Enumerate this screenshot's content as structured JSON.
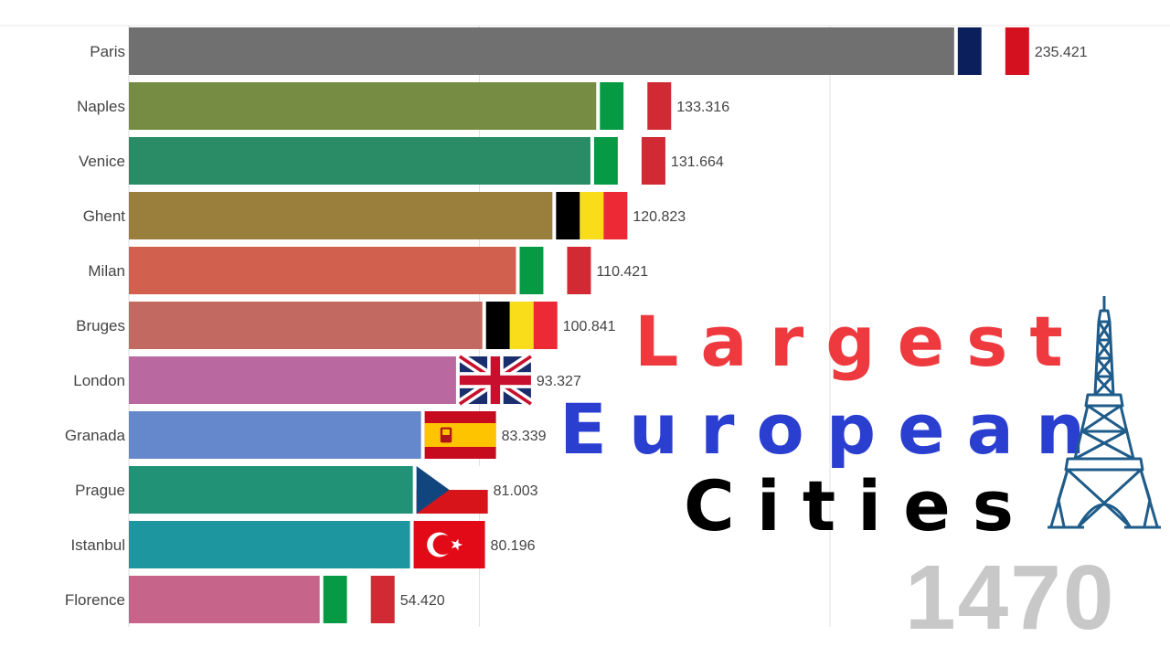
{
  "chart_data": {
    "type": "bar",
    "orientation": "horizontal",
    "categories": [
      "Paris",
      "Naples",
      "Venice",
      "Ghent",
      "Milan",
      "Bruges",
      "London",
      "Granada",
      "Prague",
      "Istanbul",
      "Florence"
    ],
    "values": [
      235.421,
      133.316,
      131.664,
      120.823,
      110.421,
      100.841,
      93.327,
      83.339,
      81.003,
      80.196,
      54.42
    ],
    "value_labels": [
      "235.421",
      "133.316",
      "131.664",
      "120.823",
      "110.421",
      "100.841",
      "93.327",
      "83.339",
      "81.003",
      "80.196",
      "54.420"
    ],
    "bar_colors": [
      "#707070",
      "#768c42",
      "#2a8c66",
      "#9a7f3c",
      "#d1604f",
      "#c26a61",
      "#b968a0",
      "#6588cc",
      "#219275",
      "#1e96a0",
      "#c66589"
    ],
    "flags": [
      "france",
      "italy",
      "italy",
      "belgium",
      "italy",
      "belgium",
      "united-kingdom",
      "spain",
      "czech-republic",
      "turkey",
      "italy"
    ],
    "gridlines": [
      100,
      200
    ],
    "xlim": [
      0,
      260
    ],
    "grid": true,
    "legend": "none"
  },
  "title": {
    "line1": "Largest",
    "line2": "European",
    "line3": "Cities"
  },
  "year": "1470",
  "colors": {
    "title_line1": "#ee3a3f",
    "title_line2": "#2a3fd0",
    "title_line3": "#000000",
    "year": "#c8c8c8",
    "tower": "#1f5c8a"
  },
  "decoration": {
    "tower_icon": "eiffel-tower-icon"
  }
}
